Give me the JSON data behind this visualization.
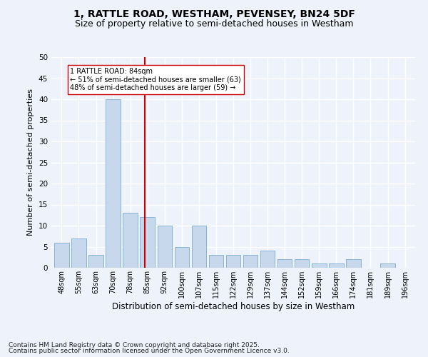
{
  "title1": "1, RATTLE ROAD, WESTHAM, PEVENSEY, BN24 5DF",
  "title2": "Size of property relative to semi-detached houses in Westham",
  "xlabel": "Distribution of semi-detached houses by size in Westham",
  "ylabel": "Number of semi-detached properties",
  "footnote1": "Contains HM Land Registry data © Crown copyright and database right 2025.",
  "footnote2": "Contains public sector information licensed under the Open Government Licence v3.0.",
  "categories": [
    "48sqm",
    "55sqm",
    "63sqm",
    "70sqm",
    "78sqm",
    "85sqm",
    "92sqm",
    "100sqm",
    "107sqm",
    "115sqm",
    "122sqm",
    "129sqm",
    "137sqm",
    "144sqm",
    "152sqm",
    "159sqm",
    "166sqm",
    "174sqm",
    "181sqm",
    "189sqm",
    "196sqm"
  ],
  "values": [
    6,
    7,
    3,
    40,
    13,
    12,
    10,
    5,
    10,
    3,
    3,
    3,
    4,
    2,
    2,
    1,
    1,
    2,
    0,
    1,
    0
  ],
  "bar_color": "#c8d8ec",
  "bar_edge_color": "#7aadd4",
  "vline_color": "#cc0000",
  "annotation_text": "1 RATTLE ROAD: 84sqm\n← 51% of semi-detached houses are smaller (63)\n48% of semi-detached houses are larger (59) →",
  "annotation_box_color": "#ffffff",
  "annotation_box_edge": "#cc0000",
  "ylim": [
    0,
    50
  ],
  "yticks": [
    0,
    5,
    10,
    15,
    20,
    25,
    30,
    35,
    40,
    45,
    50
  ],
  "background_color": "#eef2fa",
  "grid_color": "#ffffff",
  "title_fontsize": 10,
  "subtitle_fontsize": 9,
  "tick_fontsize": 7,
  "ylabel_fontsize": 8,
  "xlabel_fontsize": 8.5,
  "annot_fontsize": 7,
  "footnote_fontsize": 6.5
}
